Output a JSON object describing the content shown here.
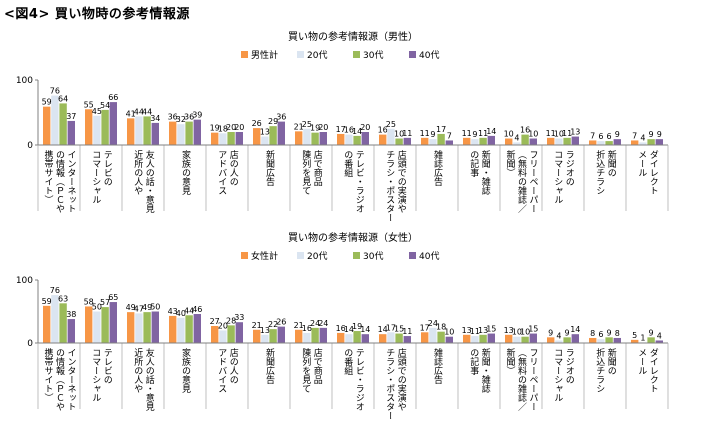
{
  "figure_title": "<図4> 買い物時の参考情報源",
  "chart_data": [
    {
      "type": "bar",
      "title": "買い物の参考情報源（男性）",
      "ylim": [
        0,
        100
      ],
      "yticks": [
        0,
        100
      ],
      "legend_position": "top",
      "categories": [
        "インターネット上の情報（ＰＣや携帯サイト）",
        "テレビのコマーシャル",
        "友人の話・意見",
        "家族の意見",
        "店の人のアドバイス",
        "新聞広告",
        "店で商品陳列を見て",
        "テレビ・ラジオの番組",
        "店頭での実演やチラシ・ポスター",
        "雑誌広告",
        "新聞・雑誌の記事",
        "フリーペーパー（無料の雑誌／新聞）",
        "ラジオのコマーシャル",
        "新聞の折込チラシ",
        "ダイレクトメール"
      ],
      "category_label_columns": [
        [
          "インターネット",
          "の情報（ＰＣや",
          "携帯サイト）"
        ],
        [
          "テレビの",
          "コマーシャル"
        ],
        [
          "友人の話・意見",
          "近所の人や"
        ],
        [
          "家族の意見"
        ],
        [
          "店の人の",
          "アドバイス"
        ],
        [
          "新聞広告"
        ],
        [
          "店で商品",
          "陳列を見て"
        ],
        [
          "テレビ・ラジオ",
          "の番組"
        ],
        [
          "店頭での実演や",
          "チラシ・ポスター"
        ],
        [
          "雑誌広告"
        ],
        [
          "新聞・雑誌",
          "の記事"
        ],
        [
          "フリーペーパー",
          "（無料の雑誌／",
          "新聞）"
        ],
        [
          "ラジオの",
          "コマーシャル"
        ],
        [
          "新聞の",
          "折込チラシ"
        ],
        [
          "ダイレクト",
          "メール"
        ]
      ],
      "series": [
        {
          "name": "男性計",
          "color": "#f79646",
          "values": [
            59,
            55,
            41,
            36,
            19,
            26,
            21,
            17,
            16,
            11,
            11,
            10,
            11,
            7,
            7
          ]
        },
        {
          "name": "20代",
          "color": "#dbe5f1",
          "values": [
            76,
            45,
            44,
            32,
            18,
            13,
            25,
            16,
            25,
            9,
            9,
            4,
            10,
            6,
            4
          ]
        },
        {
          "name": "30代",
          "color": "#9bbb59",
          "values": [
            64,
            54,
            44,
            36,
            20,
            29,
            19,
            14,
            10,
            17,
            11,
            16,
            11,
            6,
            9
          ]
        },
        {
          "name": "40代",
          "color": "#8064a2",
          "values": [
            37,
            66,
            34,
            39,
            20,
            36,
            20,
            20,
            11,
            7,
            14,
            10,
            13,
            9,
            9
          ]
        }
      ]
    },
    {
      "type": "bar",
      "title": "買い物の参考情報源（女性）",
      "ylim": [
        0,
        100
      ],
      "yticks": [
        0,
        100
      ],
      "legend_position": "top",
      "categories": [
        "インターネット上の情報（ＰＣや携帯サイト）",
        "テレビのコマーシャル",
        "友人の話・意見",
        "家族の意見",
        "店の人のアドバイス",
        "新聞広告",
        "店で商品陳列を見て",
        "テレビ・ラジオの番組",
        "店頭での実演やチラシ・ポスター",
        "雑誌広告",
        "新聞・雑誌の記事",
        "フリーペーパー（無料の雑誌／新聞）",
        "ラジオのコマーシャル",
        "新聞の折込チラシ",
        "ダイレクトメール"
      ],
      "category_label_columns": [
        [
          "インターネット",
          "の情報（ＰＣや",
          "携帯サイト）"
        ],
        [
          "テレビの",
          "コマーシャル"
        ],
        [
          "友人の話・意見",
          "近所の人や"
        ],
        [
          "家族の意見"
        ],
        [
          "店の人の",
          "アドバイス"
        ],
        [
          "新聞広告"
        ],
        [
          "店で商品",
          "陳列を見て"
        ],
        [
          "テレビ・ラジオ",
          "の番組"
        ],
        [
          "店頭での実演や",
          "チラシ・ポスター"
        ],
        [
          "雑誌広告"
        ],
        [
          "新聞・雑誌",
          "の記事"
        ],
        [
          "フリーペーパー",
          "（無料の雑誌／",
          "新聞）"
        ],
        [
          "ラジオの",
          "コマーシャル"
        ],
        [
          "新聞の",
          "折込チラシ"
        ],
        [
          "ダイレクト",
          "メール"
        ]
      ],
      "series": [
        {
          "name": "女性計",
          "color": "#f79646",
          "values": [
            59,
            58,
            49,
            43,
            27,
            21,
            21,
            16,
            14,
            17,
            13,
            13,
            9,
            8,
            5
          ]
        },
        {
          "name": "20代",
          "color": "#dbe5f1",
          "values": [
            76,
            50,
            47,
            40,
            20,
            13,
            16,
            14,
            17,
            24,
            11,
            10,
            4,
            6,
            1
          ]
        },
        {
          "name": "30代",
          "color": "#9bbb59",
          "values": [
            63,
            57,
            49,
            44,
            28,
            22,
            24,
            19,
            15,
            18,
            13,
            10,
            9,
            9,
            9
          ]
        },
        {
          "name": "40代",
          "color": "#8064a2",
          "values": [
            38,
            65,
            50,
            46,
            33,
            26,
            24,
            14,
            11,
            10,
            15,
            15,
            14,
            8,
            4
          ]
        }
      ]
    }
  ]
}
